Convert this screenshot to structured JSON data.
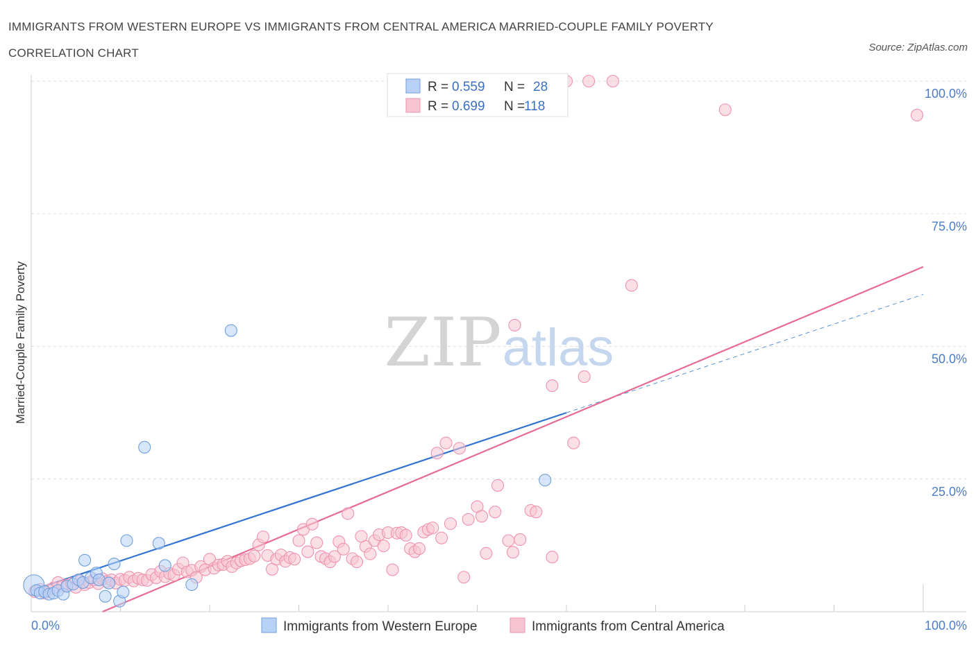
{
  "title": "IMMIGRANTS FROM WESTERN EUROPE VS IMMIGRANTS FROM CENTRAL AMERICA MARRIED-COUPLE FAMILY POVERTY CORRELATION CHART",
  "source": "Source: ZipAtlas.com",
  "watermark": {
    "zip": "ZIP",
    "atlas": "atlas"
  },
  "legend": {
    "rows": [
      {
        "r_label": "R =",
        "r_value": "0.559",
        "n_label": "N =",
        "n_value": "28"
      },
      {
        "r_label": "R =",
        "r_value": "0.699",
        "n_label": "N =",
        "n_value": "118"
      }
    ]
  },
  "bottom_legend": [
    "Immigrants from Western Europe",
    "Immigrants from Central America"
  ],
  "colors": {
    "blue_fill": "#b8d2f5",
    "blue_stroke": "#6f9fdc",
    "blue_line": "#2f73d0",
    "pink_fill": "#f7c4d3",
    "pink_stroke": "#ee93ae",
    "pink_line": "#e56b93",
    "grid": "#dddddd",
    "tick_text": "#4a7cc9"
  },
  "chart_data": {
    "type": "scatter",
    "title": "IMMIGRANTS FROM WESTERN EUROPE VS IMMIGRANTS FROM CENTRAL AMERICA MARRIED-COUPLE FAMILY POVERTY CORRELATION CHART",
    "xlabel": "",
    "ylabel": "Married-Couple Family Poverty",
    "xlim": [
      0,
      100
    ],
    "ylim": [
      0,
      100
    ],
    "x_tick_labels": [
      "0.0%",
      "100.0%"
    ],
    "y_ticks": [
      25,
      50,
      75,
      100
    ],
    "y_tick_labels": [
      "25.0%",
      "50.0%",
      "75.0%",
      "100.0%"
    ],
    "grid": true,
    "legend_position": "top-center",
    "series": [
      {
        "name": "Immigrants from Western Europe",
        "R": 0.559,
        "N": 28,
        "trend": {
          "x": [
            0,
            60
          ],
          "y": [
            4.0,
            37.5
          ],
          "dashed_extension": {
            "x": [
              60,
              100
            ],
            "y": [
              37.5,
              59.8
            ]
          }
        },
        "points": [
          {
            "x": 0.3,
            "y": 5.0
          },
          {
            "x": 0.6,
            "y": 4.0
          },
          {
            "x": 1.0,
            "y": 3.5
          },
          {
            "x": 1.5,
            "y": 3.8
          },
          {
            "x": 2.0,
            "y": 3.3
          },
          {
            "x": 2.5,
            "y": 3.5
          },
          {
            "x": 3.0,
            "y": 4.0
          },
          {
            "x": 3.6,
            "y": 3.3
          },
          {
            "x": 4.0,
            "y": 4.8
          },
          {
            "x": 4.7,
            "y": 5.2
          },
          {
            "x": 5.3,
            "y": 6.0
          },
          {
            "x": 5.8,
            "y": 5.5
          },
          {
            "x": 6.0,
            "y": 9.7
          },
          {
            "x": 6.7,
            "y": 6.4
          },
          {
            "x": 7.3,
            "y": 7.3
          },
          {
            "x": 7.6,
            "y": 6.0
          },
          {
            "x": 8.3,
            "y": 2.9
          },
          {
            "x": 8.7,
            "y": 5.4
          },
          {
            "x": 9.3,
            "y": 9.0
          },
          {
            "x": 9.9,
            "y": 2.0
          },
          {
            "x": 10.3,
            "y": 3.7
          },
          {
            "x": 10.7,
            "y": 13.4
          },
          {
            "x": 12.7,
            "y": 31.0
          },
          {
            "x": 14.3,
            "y": 12.9
          },
          {
            "x": 15.0,
            "y": 8.7
          },
          {
            "x": 18.0,
            "y": 5.1
          },
          {
            "x": 22.4,
            "y": 53.0
          },
          {
            "x": 57.6,
            "y": 24.8
          }
        ]
      },
      {
        "name": "Immigrants from Central America",
        "R": 0.699,
        "N": 118,
        "trend": {
          "x": [
            8,
            100
          ],
          "y": [
            0.0,
            65.0
          ]
        },
        "points": [
          {
            "x": 0.4,
            "y": 3.8
          },
          {
            "x": 1.0,
            "y": 4.2
          },
          {
            "x": 1.5,
            "y": 3.5
          },
          {
            "x": 2.0,
            "y": 4.0
          },
          {
            "x": 2.5,
            "y": 4.5
          },
          {
            "x": 3.0,
            "y": 5.5
          },
          {
            "x": 3.5,
            "y": 4.8
          },
          {
            "x": 4.0,
            "y": 5.0
          },
          {
            "x": 4.5,
            "y": 5.3
          },
          {
            "x": 5.0,
            "y": 4.6
          },
          {
            "x": 5.5,
            "y": 5.8
          },
          {
            "x": 6.0,
            "y": 5.1
          },
          {
            "x": 6.5,
            "y": 5.5
          },
          {
            "x": 7.0,
            "y": 6.0
          },
          {
            "x": 7.5,
            "y": 5.3
          },
          {
            "x": 8.0,
            "y": 6.2
          },
          {
            "x": 8.5,
            "y": 5.7
          },
          {
            "x": 9.0,
            "y": 6.0
          },
          {
            "x": 9.5,
            "y": 5.4
          },
          {
            "x": 10.0,
            "y": 6.1
          },
          {
            "x": 10.5,
            "y": 5.9
          },
          {
            "x": 11.0,
            "y": 6.5
          },
          {
            "x": 11.5,
            "y": 5.8
          },
          {
            "x": 12.0,
            "y": 6.3
          },
          {
            "x": 12.5,
            "y": 6.0
          },
          {
            "x": 13.0,
            "y": 5.9
          },
          {
            "x": 13.5,
            "y": 7.0
          },
          {
            "x": 14.0,
            "y": 6.4
          },
          {
            "x": 14.5,
            "y": 7.6
          },
          {
            "x": 15.0,
            "y": 6.6
          },
          {
            "x": 15.5,
            "y": 7.2
          },
          {
            "x": 16.0,
            "y": 6.9
          },
          {
            "x": 16.5,
            "y": 8.0
          },
          {
            "x": 17.0,
            "y": 9.2
          },
          {
            "x": 17.5,
            "y": 7.5
          },
          {
            "x": 18.0,
            "y": 7.8
          },
          {
            "x": 18.5,
            "y": 6.5
          },
          {
            "x": 19.0,
            "y": 8.5
          },
          {
            "x": 19.5,
            "y": 7.9
          },
          {
            "x": 20.0,
            "y": 9.9
          },
          {
            "x": 20.5,
            "y": 8.2
          },
          {
            "x": 21.0,
            "y": 8.8
          },
          {
            "x": 21.5,
            "y": 8.9
          },
          {
            "x": 22.0,
            "y": 9.5
          },
          {
            "x": 22.5,
            "y": 8.5
          },
          {
            "x": 23.0,
            "y": 9.2
          },
          {
            "x": 23.5,
            "y": 9.6
          },
          {
            "x": 24.0,
            "y": 9.8
          },
          {
            "x": 24.5,
            "y": 10.0
          },
          {
            "x": 25.0,
            "y": 10.5
          },
          {
            "x": 25.5,
            "y": 12.6
          },
          {
            "x": 26.0,
            "y": 14.1
          },
          {
            "x": 26.5,
            "y": 10.6
          },
          {
            "x": 27.0,
            "y": 8.0
          },
          {
            "x": 27.5,
            "y": 9.9
          },
          {
            "x": 28.0,
            "y": 10.7
          },
          {
            "x": 28.5,
            "y": 9.5
          },
          {
            "x": 29.0,
            "y": 10.2
          },
          {
            "x": 29.5,
            "y": 9.9
          },
          {
            "x": 30.0,
            "y": 13.4
          },
          {
            "x": 30.5,
            "y": 15.5
          },
          {
            "x": 31.0,
            "y": 11.3
          },
          {
            "x": 31.5,
            "y": 16.5
          },
          {
            "x": 32.0,
            "y": 13.0
          },
          {
            "x": 32.5,
            "y": 10.4
          },
          {
            "x": 33.0,
            "y": 10.0
          },
          {
            "x": 33.5,
            "y": 9.4
          },
          {
            "x": 34.0,
            "y": 10.4
          },
          {
            "x": 34.5,
            "y": 13.2
          },
          {
            "x": 35.0,
            "y": 11.8
          },
          {
            "x": 35.5,
            "y": 18.5
          },
          {
            "x": 36.0,
            "y": 10.0
          },
          {
            "x": 36.5,
            "y": 9.4
          },
          {
            "x": 37.0,
            "y": 14.2
          },
          {
            "x": 37.5,
            "y": 12.3
          },
          {
            "x": 38.0,
            "y": 10.9
          },
          {
            "x": 38.5,
            "y": 13.4
          },
          {
            "x": 39.0,
            "y": 14.5
          },
          {
            "x": 39.5,
            "y": 12.4
          },
          {
            "x": 40.0,
            "y": 14.9
          },
          {
            "x": 40.5,
            "y": 7.9
          },
          {
            "x": 41.0,
            "y": 14.8
          },
          {
            "x": 41.5,
            "y": 14.9
          },
          {
            "x": 42.0,
            "y": 14.4
          },
          {
            "x": 42.5,
            "y": 11.9
          },
          {
            "x": 43.0,
            "y": 11.3
          },
          {
            "x": 43.5,
            "y": 11.9
          },
          {
            "x": 44.0,
            "y": 15.0
          },
          {
            "x": 44.5,
            "y": 15.5
          },
          {
            "x": 45.0,
            "y": 15.8
          },
          {
            "x": 45.5,
            "y": 29.9
          },
          {
            "x": 46.0,
            "y": 13.9
          },
          {
            "x": 46.5,
            "y": 31.8
          },
          {
            "x": 47.0,
            "y": 16.6
          },
          {
            "x": 48.0,
            "y": 30.8
          },
          {
            "x": 48.5,
            "y": 6.5
          },
          {
            "x": 49.0,
            "y": 17.4
          },
          {
            "x": 50.0,
            "y": 19.8
          },
          {
            "x": 50.5,
            "y": 18.0
          },
          {
            "x": 51.0,
            "y": 11.0
          },
          {
            "x": 52.0,
            "y": 18.8
          },
          {
            "x": 52.3,
            "y": 23.8
          },
          {
            "x": 53.5,
            "y": 13.4
          },
          {
            "x": 54.0,
            "y": 11.2
          },
          {
            "x": 54.2,
            "y": 54.0
          },
          {
            "x": 54.8,
            "y": 13.6
          },
          {
            "x": 56.0,
            "y": 19.1
          },
          {
            "x": 56.6,
            "y": 18.8
          },
          {
            "x": 58.4,
            "y": 10.3
          },
          {
            "x": 58.4,
            "y": 42.6
          },
          {
            "x": 60.0,
            "y": 100.0
          },
          {
            "x": 60.8,
            "y": 31.8
          },
          {
            "x": 62.0,
            "y": 44.3
          },
          {
            "x": 62.5,
            "y": 100.0
          },
          {
            "x": 65.2,
            "y": 100.0
          },
          {
            "x": 67.3,
            "y": 61.5
          },
          {
            "x": 77.8,
            "y": 94.6
          },
          {
            "x": 99.3,
            "y": 93.6
          }
        ]
      }
    ]
  }
}
